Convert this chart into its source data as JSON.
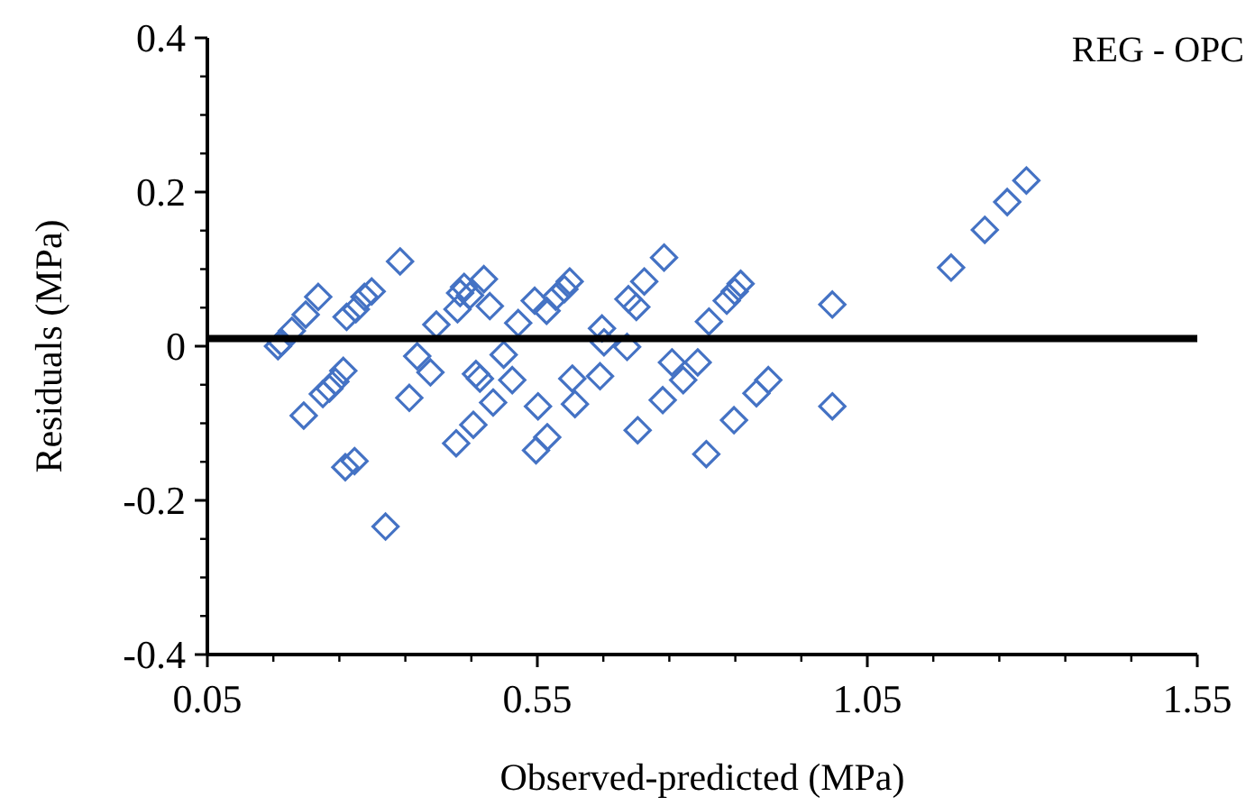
{
  "chart_data": {
    "type": "scatter",
    "title": "REG - OPC",
    "xlabel": "Observed-predicted (MPa)",
    "ylabel": "Residuals (MPa)",
    "xlim": [
      0.05,
      1.55
    ],
    "xticks": [
      0.05,
      0.55,
      1.05,
      1.55
    ],
    "ylim": [
      -0.4,
      0.4
    ],
    "yticks": [
      -0.4,
      -0.2,
      0,
      0.2,
      0.4
    ],
    "grid": false,
    "marker": "diamond",
    "ref_lines": [
      {
        "axis": "y",
        "value": 0.01,
        "color": "#000000"
      }
    ],
    "series": [
      {
        "color": "#4472c4",
        "x": [
          0.157,
          0.162,
          0.178,
          0.199,
          0.218,
          0.196,
          0.225,
          0.235,
          0.244,
          0.256,
          0.261,
          0.275,
          0.288,
          0.299,
          0.259,
          0.273,
          0.342,
          0.32,
          0.356,
          0.368,
          0.388,
          0.397,
          0.427,
          0.429,
          0.433,
          0.439,
          0.448,
          0.453,
          0.457,
          0.463,
          0.469,
          0.478,
          0.483,
          0.499,
          0.512,
          0.521,
          0.546,
          0.551,
          0.548,
          0.565,
          0.564,
          0.578,
          0.591,
          0.599,
          0.603,
          0.607,
          0.645,
          0.648,
          0.651,
          0.686,
          0.688,
          0.7,
          0.702,
          0.712,
          0.742,
          0.74,
          0.754,
          0.771,
          0.793,
          0.806,
          0.81,
          0.837,
          0.849,
          0.858,
          0.848,
          0.882,
          0.9,
          0.997,
          0.997,
          1.177,
          1.228,
          1.262,
          1.291
        ],
        "values": [
          0,
          0.005,
          0.02,
          0.041,
          0.064,
          -0.09,
          -0.062,
          -0.055,
          -0.046,
          -0.032,
          0.038,
          0.048,
          0.064,
          0.071,
          -0.157,
          -0.149,
          0.11,
          -0.234,
          -0.067,
          -0.013,
          -0.034,
          0.028,
          -0.126,
          0.048,
          0.069,
          0.077,
          0.066,
          -0.102,
          -0.036,
          -0.042,
          0.087,
          0.052,
          -0.073,
          -0.011,
          -0.044,
          0.03,
          0.059,
          -0.078,
          -0.135,
          -0.118,
          0.046,
          0.064,
          0.074,
          0.084,
          -0.042,
          -0.075,
          -0.039,
          0.023,
          0.005,
          -0.001,
          0.061,
          0.051,
          -0.109,
          0.084,
          0.115,
          -0.07,
          -0.021,
          -0.044,
          -0.021,
          -0.14,
          0.032,
          0.059,
          0.071,
          0.081,
          -0.096,
          -0.061,
          -0.044,
          0.054,
          -0.078,
          0.102,
          0.151,
          0.187,
          0.215
        ]
      }
    ]
  }
}
